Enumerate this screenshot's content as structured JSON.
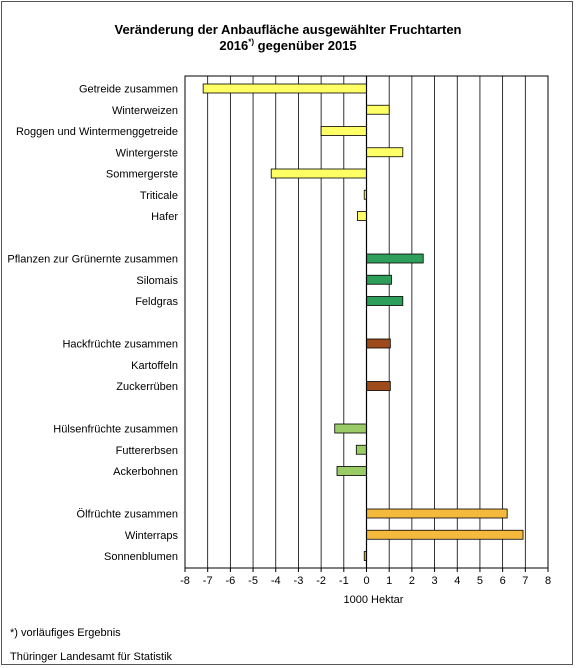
{
  "title": {
    "line1": "Veränderung der Anbaufläche ausgewählter Fruchtarten",
    "line2_prefix": "2016",
    "line2_sup": "*)",
    "line2_suffix": " gegenüber 2015"
  },
  "footnote": "*) vorläufiges Ergebnis",
  "source": "Thüringer Landesamt für Statistik",
  "colors": {
    "getreide": "#ffff66",
    "gruenernte": "#2e9e5b",
    "hackfruechte": "#9e4a1a",
    "huelsenfruechte": "#99cc66",
    "oelfruechte": "#f5b93e"
  },
  "chart_data": {
    "type": "bar",
    "orientation": "horizontal",
    "xlabel": "1000 Hektar",
    "xlim": [
      -8,
      8
    ],
    "xticks": [
      "-8",
      "-7",
      "-6",
      "-5",
      "-4",
      "-3",
      "-2",
      "-1",
      "0",
      "1",
      "2",
      "3",
      "4",
      "5",
      "6",
      "7",
      "8"
    ],
    "grid": "vertical",
    "rows": [
      {
        "label": "Getreide zusammen",
        "value": -7.2,
        "group": "getreide"
      },
      {
        "label": "Winterweizen",
        "value": 1.0,
        "group": "getreide"
      },
      {
        "label": "Roggen und Wintermenggetreide",
        "value": -2.0,
        "group": "getreide"
      },
      {
        "label": "Wintergerste",
        "value": 1.6,
        "group": "getreide"
      },
      {
        "label": "Sommergerste",
        "value": -4.2,
        "group": "getreide"
      },
      {
        "label": "Triticale",
        "value": -0.1,
        "group": "getreide"
      },
      {
        "label": "Hafer",
        "value": -0.4,
        "group": "getreide"
      },
      {
        "label": "",
        "value": null,
        "group": null
      },
      {
        "label": "Pflanzen zur Grünernte zusammen",
        "value": 2.5,
        "group": "gruenernte"
      },
      {
        "label": "Silomais",
        "value": 1.1,
        "group": "gruenernte"
      },
      {
        "label": "Feldgras",
        "value": 1.6,
        "group": "gruenernte"
      },
      {
        "label": "",
        "value": null,
        "group": null
      },
      {
        "label": "Hackfrüchte zusammen",
        "value": 1.05,
        "group": "hackfruechte"
      },
      {
        "label": "Kartoffeln",
        "value": 0.0,
        "group": "hackfruechte"
      },
      {
        "label": "Zuckerrüben",
        "value": 1.05,
        "group": "hackfruechte"
      },
      {
        "label": "",
        "value": null,
        "group": null
      },
      {
        "label": "Hülsenfrüchte zusammen",
        "value": -1.4,
        "group": "huelsenfruechte"
      },
      {
        "label": "Futtererbsen",
        "value": -0.45,
        "group": "huelsenfruechte"
      },
      {
        "label": "Ackerbohnen",
        "value": -1.3,
        "group": "huelsenfruechte"
      },
      {
        "label": "",
        "value": null,
        "group": null
      },
      {
        "label": "Ölfrüchte zusammen",
        "value": 6.2,
        "group": "oelfruechte"
      },
      {
        "label": "Winterraps",
        "value": 6.9,
        "group": "oelfruechte"
      },
      {
        "label": "Sonnenblumen",
        "value": -0.1,
        "group": "oelfruechte"
      }
    ]
  }
}
